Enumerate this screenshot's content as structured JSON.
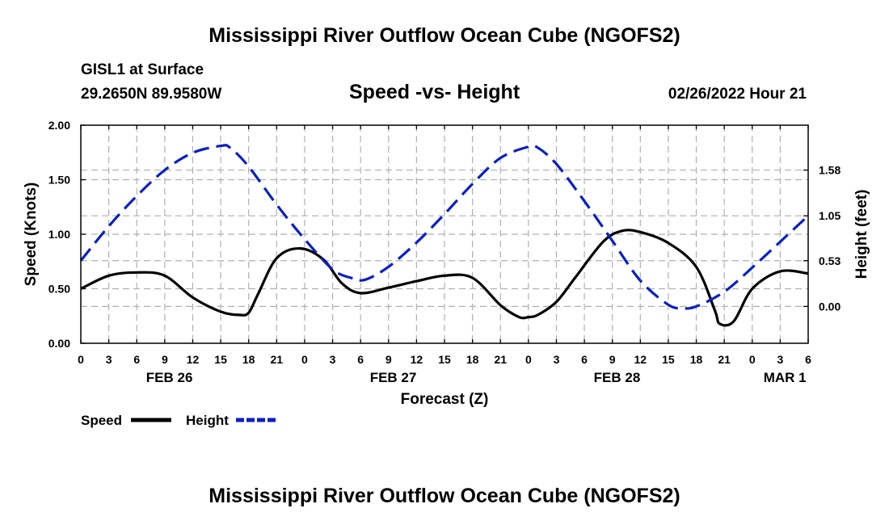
{
  "header": {
    "title": "Mississippi River Outflow Ocean Cube (NGOFS2)",
    "station": "GISL1 at Surface",
    "coords": "29.2650N  89.9580W",
    "subtitle": "Speed -vs- Height",
    "timestamp": "02/26/2022 Hour 21"
  },
  "footer": {
    "title": "Mississippi River Outflow Ocean Cube (NGOFS2)"
  },
  "chart_data": {
    "type": "line",
    "title": "Speed -vs- Height",
    "xlabel": "Forecast (Z)",
    "ylabel": "Speed (Knots)",
    "y2label": "Height (feet)",
    "grid": true,
    "x_unit": "hours since FEB 26 00Z",
    "xlim": [
      0,
      78
    ],
    "ylim": [
      0,
      2.0
    ],
    "y2lim": [
      -0.4266,
      2.1
    ],
    "x_tick_values": [
      0,
      3,
      6,
      9,
      12,
      15,
      18,
      21,
      24,
      27,
      30,
      33,
      36,
      39,
      42,
      45,
      48,
      51,
      54,
      57,
      60,
      63,
      66,
      69,
      72,
      75,
      78
    ],
    "x_tick_labels": [
      "0",
      "3",
      "6",
      "9",
      "12",
      "15",
      "18",
      "21",
      "0",
      "3",
      "6",
      "9",
      "12",
      "15",
      "18",
      "21",
      "0",
      "3",
      "6",
      "9",
      "12",
      "15",
      "18",
      "21",
      "0",
      "3",
      "6"
    ],
    "date_labels": [
      {
        "x": 9.5,
        "label": "FEB 26"
      },
      {
        "x": 33.5,
        "label": "FEB 27"
      },
      {
        "x": 57.5,
        "label": "FEB 28"
      },
      {
        "x": 75.5,
        "label": "MAR 1"
      }
    ],
    "y_tick_values": [
      0,
      0.5,
      1.0,
      1.5,
      2.0
    ],
    "y_tick_labels": [
      "0.00",
      "0.50",
      "1.00",
      "1.50",
      "2.00"
    ],
    "y2_tick_values": [
      0,
      0.53,
      1.05,
      1.58
    ],
    "y2_tick_labels": [
      "0.00",
      "0.53",
      "1.05",
      "1.58"
    ],
    "series": [
      {
        "name": "Speed",
        "axis": "left",
        "color": "#000000",
        "style": "solid",
        "x": [
          0,
          3,
          6,
          9,
          12,
          15,
          17,
          18,
          19,
          21,
          23.5,
          26,
          28,
          30,
          33,
          36,
          39,
          42,
          45,
          47,
          48,
          49,
          51,
          53,
          56,
          58,
          60,
          63,
          66,
          68,
          68.5,
          70,
          72,
          75,
          78
        ],
        "y": [
          0.5,
          0.62,
          0.65,
          0.62,
          0.42,
          0.29,
          0.26,
          0.28,
          0.45,
          0.78,
          0.87,
          0.77,
          0.55,
          0.46,
          0.51,
          0.57,
          0.62,
          0.6,
          0.35,
          0.24,
          0.24,
          0.26,
          0.38,
          0.6,
          0.93,
          1.03,
          1.02,
          0.92,
          0.7,
          0.3,
          0.18,
          0.2,
          0.5,
          0.66,
          0.64
        ]
      },
      {
        "name": "Height",
        "axis": "right",
        "color": "#0a1fc4",
        "style": "dashed",
        "x": [
          0,
          3,
          6,
          9,
          12,
          15,
          16,
          18,
          21,
          24,
          27,
          29,
          30.5,
          33,
          36,
          39,
          42,
          45,
          48,
          49,
          51,
          54,
          57,
          60,
          63,
          64.5,
          66,
          69,
          72,
          75,
          78
        ],
        "y": [
          0.53,
          0.93,
          1.28,
          1.58,
          1.78,
          1.86,
          1.84,
          1.62,
          1.18,
          0.78,
          0.43,
          0.33,
          0.31,
          0.46,
          0.74,
          1.07,
          1.42,
          1.72,
          1.85,
          1.84,
          1.65,
          1.22,
          0.76,
          0.3,
          0.02,
          -0.02,
          0.0,
          0.17,
          0.45,
          0.75,
          1.05
        ]
      }
    ],
    "legend": [
      {
        "label": "Speed",
        "color": "#000000",
        "style": "solid"
      },
      {
        "label": "Height",
        "color": "#0a1fc4",
        "style": "dashed"
      }
    ],
    "legend_position": "bottom-left"
  }
}
